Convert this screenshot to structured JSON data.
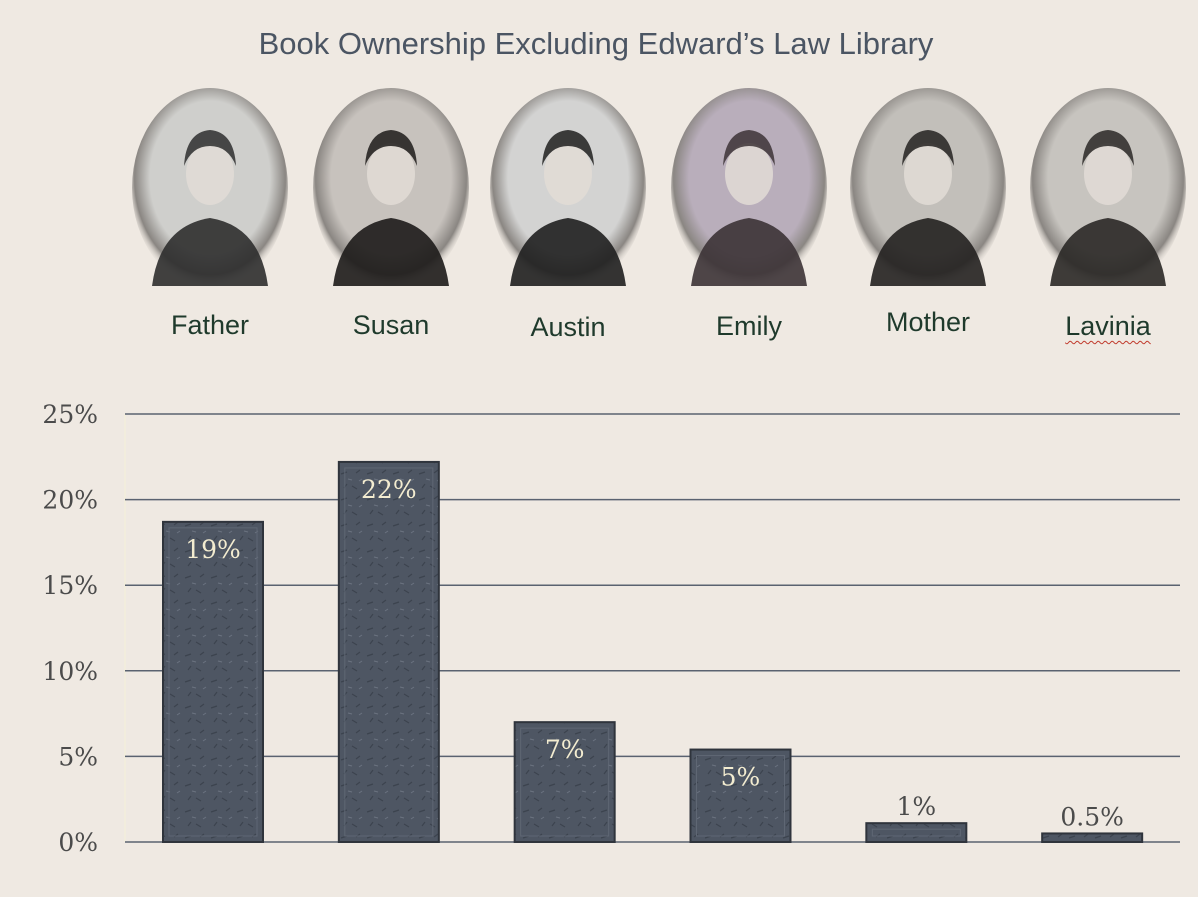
{
  "colors": {
    "background": "#efe9e2",
    "bar": "#4e5663",
    "bar_edge": "#2f343c",
    "gridline": "#5a6270",
    "title": "#4b5563",
    "name_text": "#1f3a2c",
    "label_on_bar": "#f3ecd0",
    "label_above_bar": "#4b4b4b"
  },
  "people": [
    {
      "name": "Father",
      "icon": "portrait-photo"
    },
    {
      "name": "Susan",
      "icon": "portrait-photo"
    },
    {
      "name": "Austin",
      "icon": "portrait-photo"
    },
    {
      "name": "Emily",
      "icon": "portrait-photo"
    },
    {
      "name": "Mother",
      "icon": "portrait-photo"
    },
    {
      "name": "Lavinia",
      "icon": "portrait-photo"
    }
  ],
  "chart_data": {
    "type": "bar",
    "title": "Book Ownership Excluding Edward’s Law Library",
    "categories": [
      "Father",
      "Susan",
      "Austin",
      "Emily",
      "Mother",
      "Lavinia"
    ],
    "values": [
      18.7,
      22.2,
      7.0,
      5.4,
      1.1,
      0.5
    ],
    "data_labels": [
      "19%",
      "22%",
      "7%",
      "5%",
      "1%",
      "0.5%"
    ],
    "ylim": [
      0,
      25
    ],
    "yticks": [
      "0%",
      "5%",
      "10%",
      "15%",
      "20%",
      "25%"
    ],
    "ytick_values": [
      0,
      5,
      10,
      15,
      20,
      25
    ],
    "xlabel": "",
    "ylabel": "",
    "grid": true,
    "legend": "none"
  }
}
